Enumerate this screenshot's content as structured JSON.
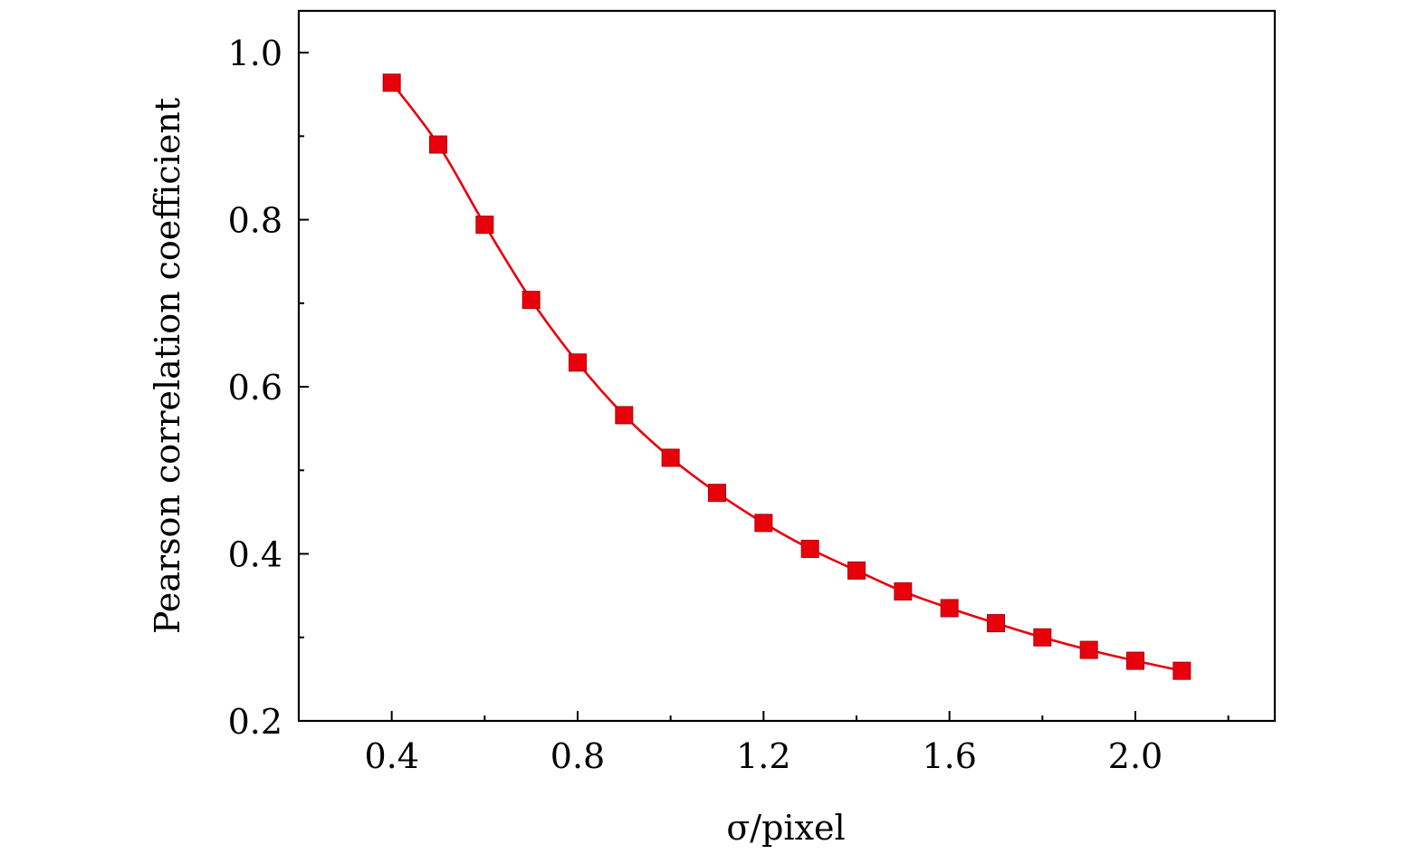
{
  "chart_data": {
    "type": "line",
    "title": "",
    "xlabel": "σ/pixel",
    "ylabel": "Pearson correlation coefficient",
    "xlim": [
      0.2,
      2.3
    ],
    "ylim": [
      0.2,
      1.05
    ],
    "x_major_ticks": [
      0.4,
      0.8,
      1.2,
      1.6,
      2.0
    ],
    "x_minor_ticks": [
      0.6,
      1.0,
      1.4,
      1.8,
      2.2
    ],
    "x_tick_labels": [
      "0.4",
      "0.8",
      "1.2",
      "1.6",
      "2.0"
    ],
    "y_major_ticks": [
      0.2,
      0.4,
      0.6,
      0.8,
      1.0
    ],
    "y_minor_ticks": [
      0.3,
      0.5,
      0.7,
      0.9
    ],
    "y_tick_labels": [
      "0.2",
      "0.4",
      "0.6",
      "0.8",
      "1.0"
    ],
    "grid": false,
    "legend": "none",
    "series": [
      {
        "color": "#e8000b",
        "marker": "square",
        "line": "smooth",
        "x": [
          0.4,
          0.5,
          0.6,
          0.7,
          0.8,
          0.9,
          1.0,
          1.1,
          1.2,
          1.3,
          1.4,
          1.5,
          1.6,
          1.7,
          1.8,
          1.9,
          2.0,
          2.1
        ],
        "y": [
          0.964,
          0.89,
          0.794,
          0.704,
          0.629,
          0.566,
          0.515,
          0.473,
          0.437,
          0.406,
          0.38,
          0.355,
          0.335,
          0.317,
          0.3,
          0.285,
          0.272,
          0.26
        ]
      }
    ]
  }
}
